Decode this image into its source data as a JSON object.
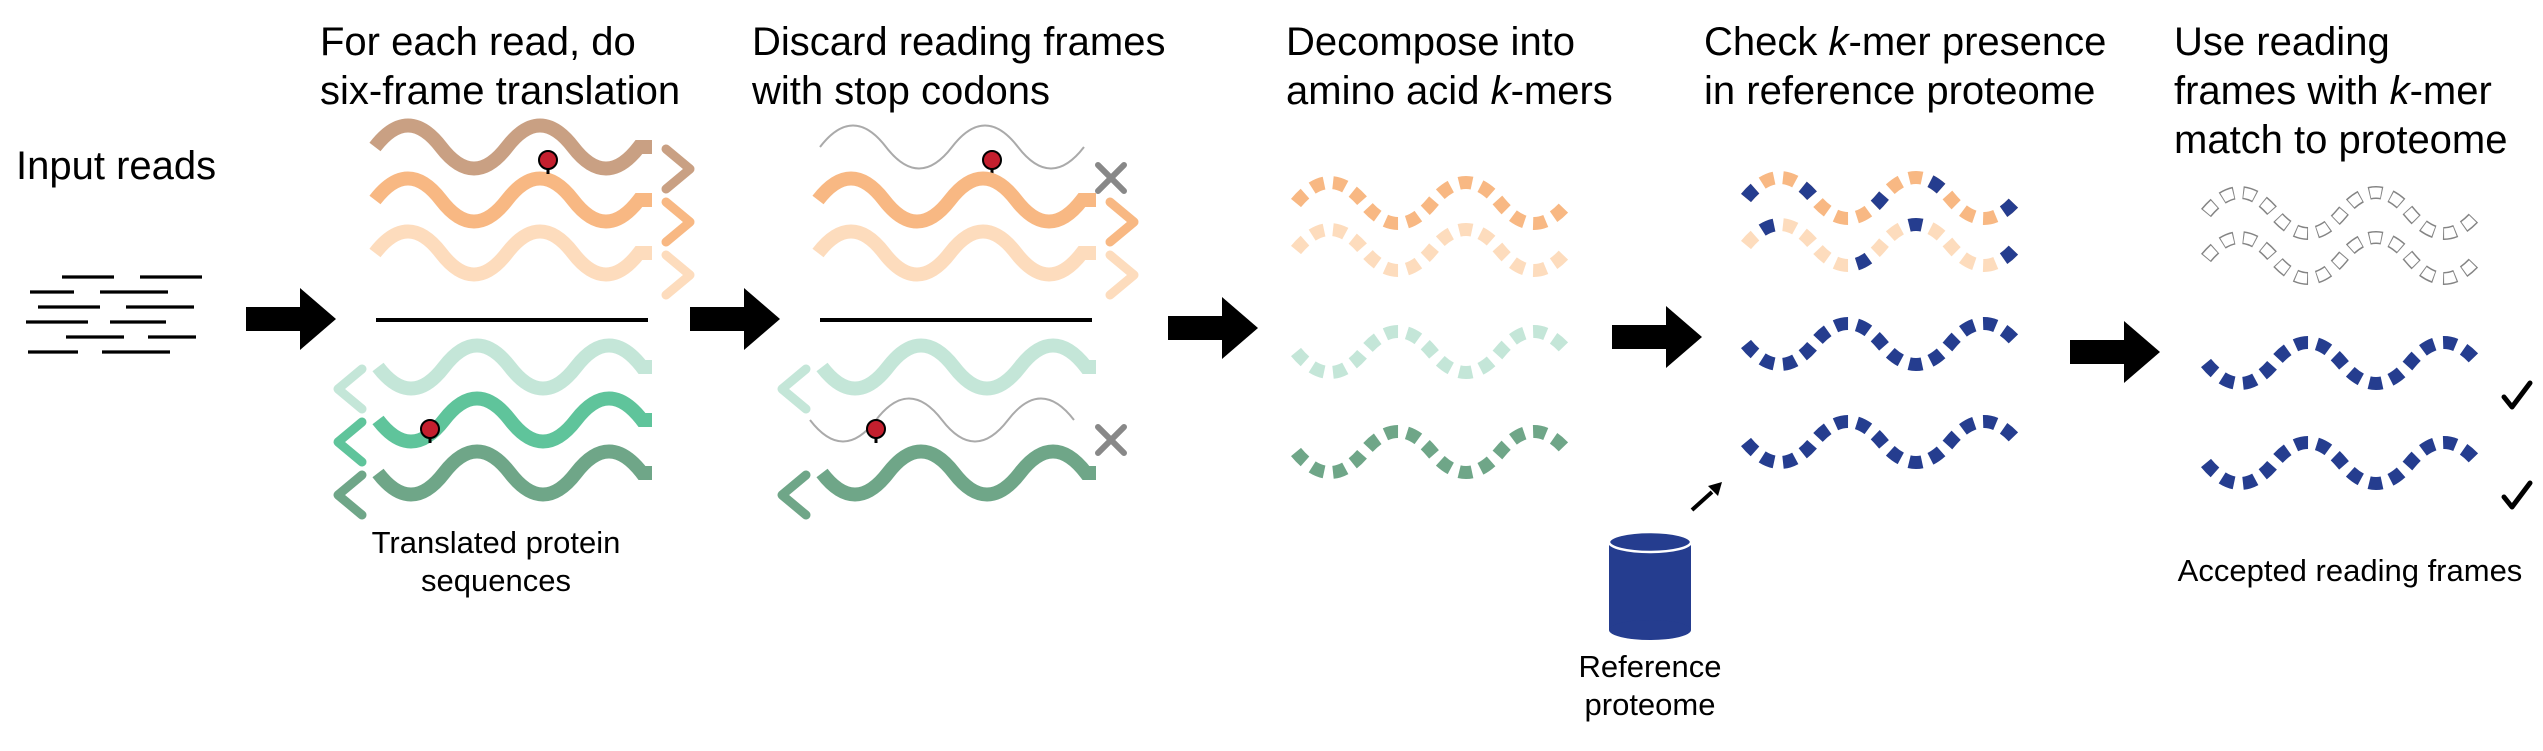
{
  "pipeline": {
    "steps": [
      {
        "id": "input",
        "title_lines": [
          "Input reads"
        ]
      },
      {
        "id": "translate",
        "title_lines": [
          "For each read, do",
          "six-frame translation"
        ],
        "caption_lines": [
          "Translated protein",
          "sequences"
        ]
      },
      {
        "id": "discard",
        "title_lines": [
          "Discard reading frames",
          "with stop codons"
        ]
      },
      {
        "id": "decompose",
        "title_lines": [
          "Decompose into",
          "amino acid k-mers"
        ]
      },
      {
        "id": "check",
        "title_lines": [
          "Check k-mer presence",
          "in reference proteome"
        ],
        "caption_lines": [
          "Reference",
          "proteome"
        ]
      },
      {
        "id": "use",
        "title_lines": [
          "Use reading",
          "frames with k-mer",
          "match to proteome"
        ],
        "caption_lines": [
          "Accepted reading frames"
        ]
      }
    ]
  },
  "legend_marks": {
    "stop_codon": "stop-codon-pin-icon",
    "discarded": "cross-icon",
    "accepted": "check-icon",
    "reference": "database-cylinder-icon"
  },
  "colors": {
    "forward_frame_1": "#c9a083",
    "forward_frame_2": "#f8b883",
    "forward_frame_3": "#fddcbd",
    "reverse_frame_1": "#c4e6d8",
    "reverse_frame_2": "#5fc49b",
    "reverse_frame_3": "#6fa688",
    "proteome_match": "#253d8f",
    "stop_codon": "#c41f2e",
    "discarded": "#888888",
    "arrow": "#000000"
  }
}
